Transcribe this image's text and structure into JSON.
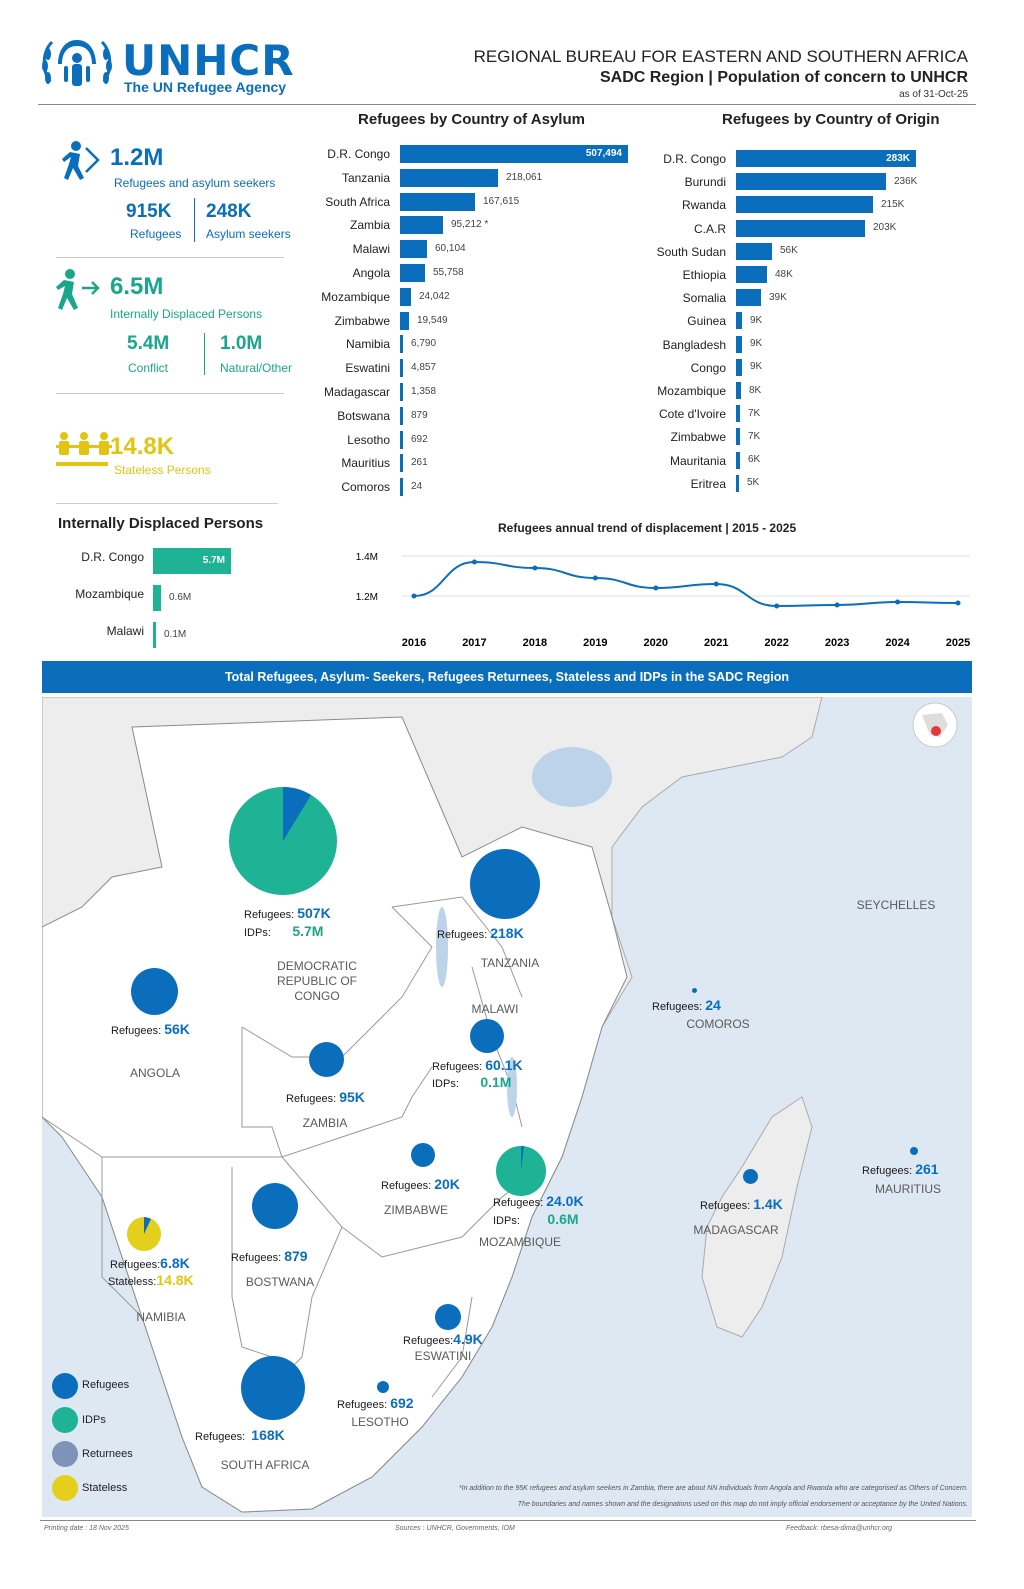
{
  "header": {
    "logo_word": "UNHCR",
    "logo_sub": "The UN Refugee Agency",
    "title": "REGIONAL BUREAU FOR EASTERN AND SOUTHERN AFRICA",
    "subtitle": "SADC Region | Population of concern to UNHCR",
    "date": "as of 31-Oct-25"
  },
  "kpis": {
    "refugees_asylum": {
      "value": "1.2M",
      "label": "Refugees and asylum seekers"
    },
    "refugees": {
      "value": "915K",
      "label": "Refugees"
    },
    "asylum": {
      "value": "248K",
      "label": "Asylum seekers"
    },
    "idps": {
      "value": "6.5M",
      "label": "Internally Displaced Persons"
    },
    "conflict": {
      "value": "5.4M",
      "label": "Conflict"
    },
    "natural": {
      "value": "1.0M",
      "label": "Natural/Other"
    },
    "stateless": {
      "value": "14.8K",
      "label": "Stateless Persons"
    }
  },
  "asylum_chart": {
    "title": "Refugees by Country of Asylum",
    "rows": [
      {
        "label": "D.R. Congo",
        "value": 507494,
        "text": "507,494"
      },
      {
        "label": "Tanzania",
        "value": 218061,
        "text": "218,061"
      },
      {
        "label": "South Africa",
        "value": 167615,
        "text": "167,615"
      },
      {
        "label": "Zambia",
        "value": 95212,
        "text": "95,212 *"
      },
      {
        "label": "Malawi",
        "value": 60104,
        "text": "60,104"
      },
      {
        "label": "Angola",
        "value": 55758,
        "text": "55,758"
      },
      {
        "label": "Mozambique",
        "value": 24042,
        "text": "24,042"
      },
      {
        "label": "Zimbabwe",
        "value": 19549,
        "text": "19,549"
      },
      {
        "label": "Namibia",
        "value": 6790,
        "text": "6,790"
      },
      {
        "label": "Eswatini",
        "value": 4857,
        "text": "4,857"
      },
      {
        "label": "Madagascar",
        "value": 1358,
        "text": "1,358"
      },
      {
        "label": "Botswana",
        "value": 879,
        "text": "879"
      },
      {
        "label": "Lesotho",
        "value": 692,
        "text": "692"
      },
      {
        "label": "Mauritius",
        "value": 261,
        "text": "261"
      },
      {
        "label": "Comoros",
        "value": 24,
        "text": "24"
      }
    ]
  },
  "origin_chart": {
    "title": "Refugees by Country of Origin",
    "rows": [
      {
        "label": "D.R. Congo",
        "value": 283,
        "text": "283K"
      },
      {
        "label": "Burundi",
        "value": 236,
        "text": "236K"
      },
      {
        "label": "Rwanda",
        "value": 215,
        "text": "215K"
      },
      {
        "label": "C.A.R",
        "value": 203,
        "text": "203K"
      },
      {
        "label": "South Sudan",
        "value": 56,
        "text": "56K"
      },
      {
        "label": "Ethiopia",
        "value": 48,
        "text": "48K"
      },
      {
        "label": "Somalia",
        "value": 39,
        "text": "39K"
      },
      {
        "label": "Guinea",
        "value": 9,
        "text": "9K"
      },
      {
        "label": "Bangladesh",
        "value": 9,
        "text": "9K"
      },
      {
        "label": "Congo",
        "value": 9,
        "text": "9K"
      },
      {
        "label": "Mozambique",
        "value": 8,
        "text": "8K"
      },
      {
        "label": "Cote d'Ivoire",
        "value": 7,
        "text": "7K"
      },
      {
        "label": "Zimbabwe",
        "value": 7,
        "text": "7K"
      },
      {
        "label": "Mauritania",
        "value": 6,
        "text": "6K"
      },
      {
        "label": "Eritrea",
        "value": 5,
        "text": "5K"
      }
    ]
  },
  "idp_chart": {
    "title": "Internally Displaced Persons",
    "rows": [
      {
        "label": "D.R. Congo",
        "value": 5.7,
        "text": "5.7M"
      },
      {
        "label": "Mozambique",
        "value": 0.6,
        "text": "0.6M"
      },
      {
        "label": "Malawi",
        "value": 0.1,
        "text": "0.1M"
      }
    ]
  },
  "chart_data": {
    "type": "line",
    "title": "Refugees annual trend of displacement | 2015 - 2025",
    "x": [
      "2016",
      "2017",
      "2018",
      "2019",
      "2020",
      "2021",
      "2022",
      "2023",
      "2024",
      "2025"
    ],
    "values": [
      1.2,
      1.37,
      1.34,
      1.29,
      1.24,
      1.26,
      1.15,
      1.155,
      1.17,
      1.165
    ],
    "y_ticks": [
      "1.4M",
      "1.2M"
    ],
    "ylim": [
      1.1,
      1.42
    ],
    "grid": true,
    "color": "#0a6ebd"
  },
  "map": {
    "banner": "Total Refugees, Asylum- Seekers, Refugees Returnees, Stateless and IDPs in the SADC Region",
    "countries": {
      "drc": "DEMOCRATIC REPUBLIC OF CONGO",
      "tanzania": "TANZANIA",
      "angola": "ANGOLA",
      "zambia": "ZAMBIA",
      "malawi": "MALAWI",
      "zimbabwe": "ZIMBABWE",
      "mozambique": "MOZAMBIQUE",
      "namibia": "NAMIBIA",
      "botswana": "BOSTWANA",
      "eswatini": "ESWATINI",
      "lesotho": "LESOTHO",
      "south_africa": "SOUTH AFRICA",
      "madagascar": "MADAGASCAR",
      "comoros": "COMOROS",
      "seychelles": "SEYCHELLES",
      "mauritius": "MAURITIUS"
    },
    "labels": {
      "refugees": "Refugees:",
      "idps": "IDPs:",
      "stateless": "Stateless:",
      "drc_ref": "507K",
      "drc_idp": "5.7M",
      "tza_ref": "218K",
      "ago_ref": "56K",
      "zmb_ref": "95K",
      "mwi_ref": "60.1K",
      "mwi_idp": "0.1M",
      "zwe_ref": "20K",
      "moz_ref": "24.0K",
      "moz_idp": "0.6M",
      "nam_ref": "6.8K",
      "nam_stl": "14.8K",
      "bwa_ref": "879",
      "swz_ref": "4.9K",
      "lso_ref": "692",
      "zaf_ref": "168K",
      "mdg_ref": "1.4K",
      "com_ref": "24",
      "mus_ref": "261"
    },
    "legend": [
      "Refugees",
      "IDPs",
      "Returnees",
      "Stateless"
    ],
    "legend_colors": [
      "#0a6ebd",
      "#1db394",
      "#7f93b8",
      "#e3cf1c"
    ],
    "footnote1": "*In addition to the 95K refugees and asylum seekers in Zambia, there are about NN individuals from Angola and Rwanda who are categorised as Others of Concern.",
    "footnote2": "The boundaries and names shown and the designations used on this map do not imply official endorsement or acceptance by the United Nations."
  },
  "footer": {
    "printing": "Printing date : 18 Nov 2025",
    "sources": "Sources : UNHCR, Governments, IOM",
    "feedback": "Feedback: rbesa-dima@unhcr.org"
  }
}
